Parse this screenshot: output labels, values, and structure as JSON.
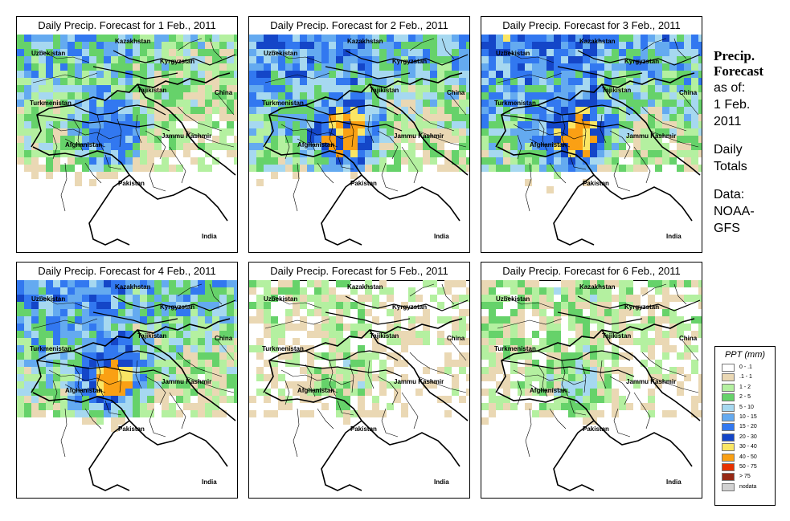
{
  "side": {
    "title_line1": "Precip.",
    "title_line2": "Forecast",
    "asof_line1": "as of:",
    "asof_line2": "1 Feb.",
    "asof_line3": "2011",
    "daily_line1": "Daily",
    "daily_line2": "Totals",
    "data_line1": "Data:",
    "data_line2": "NOAA-",
    "data_line3": "GFS"
  },
  "place_labels": {
    "kazakhstan": "Kazakhstan",
    "uzbekistan": "Uzbekistan",
    "kyrgyzstan": "Kyrgyzstan",
    "tajikistan": "Tajikistan",
    "china": "China",
    "turkmenistan": "Turkmenistan",
    "afghanistan": "Afghanistan",
    "jammu_kashmir": "Jammu Kashmir",
    "pakistan": "Pakistan",
    "india": "India"
  },
  "panels": [
    {
      "title": "Daily Precip. Forecast for  1 Feb., 2011",
      "intensity": 0.75
    },
    {
      "title": "Daily Precip. Forecast for  2 Feb., 2011",
      "intensity": 0.95
    },
    {
      "title": "Daily Precip. Forecast for  3 Feb., 2011",
      "intensity": 1.0
    },
    {
      "title": "Daily Precip. Forecast for  4 Feb., 2011",
      "intensity": 0.9
    },
    {
      "title": "Daily Precip. Forecast for  5 Feb., 2011",
      "intensity": 0.35
    },
    {
      "title": "Daily Precip. Forecast for  6 Feb., 2011",
      "intensity": 0.45
    }
  ],
  "legend": {
    "title": "PPT (mm)",
    "entries": [
      {
        "label": "0 - .1",
        "color": "#ffffff"
      },
      {
        "label": ".1 - 1",
        "color": "#ead8b4"
      },
      {
        "label": "1 - 2",
        "color": "#b4f0a0"
      },
      {
        "label": "2 - 5",
        "color": "#66d26a"
      },
      {
        "label": "5 - 10",
        "color": "#a6d8f0"
      },
      {
        "label": "10 - 15",
        "color": "#64aaf0"
      },
      {
        "label": "15 - 20",
        "color": "#3278f0"
      },
      {
        "label": "20 - 30",
        "color": "#1446c8"
      },
      {
        "label": "30 - 40",
        "color": "#fae664"
      },
      {
        "label": "40 - 50",
        "color": "#faa014"
      },
      {
        "label": "50 - 75",
        "color": "#e63200"
      },
      {
        "label": "> 75",
        "color": "#962814"
      },
      {
        "label": "nodata",
        "color": "#d2d2d2"
      }
    ]
  }
}
